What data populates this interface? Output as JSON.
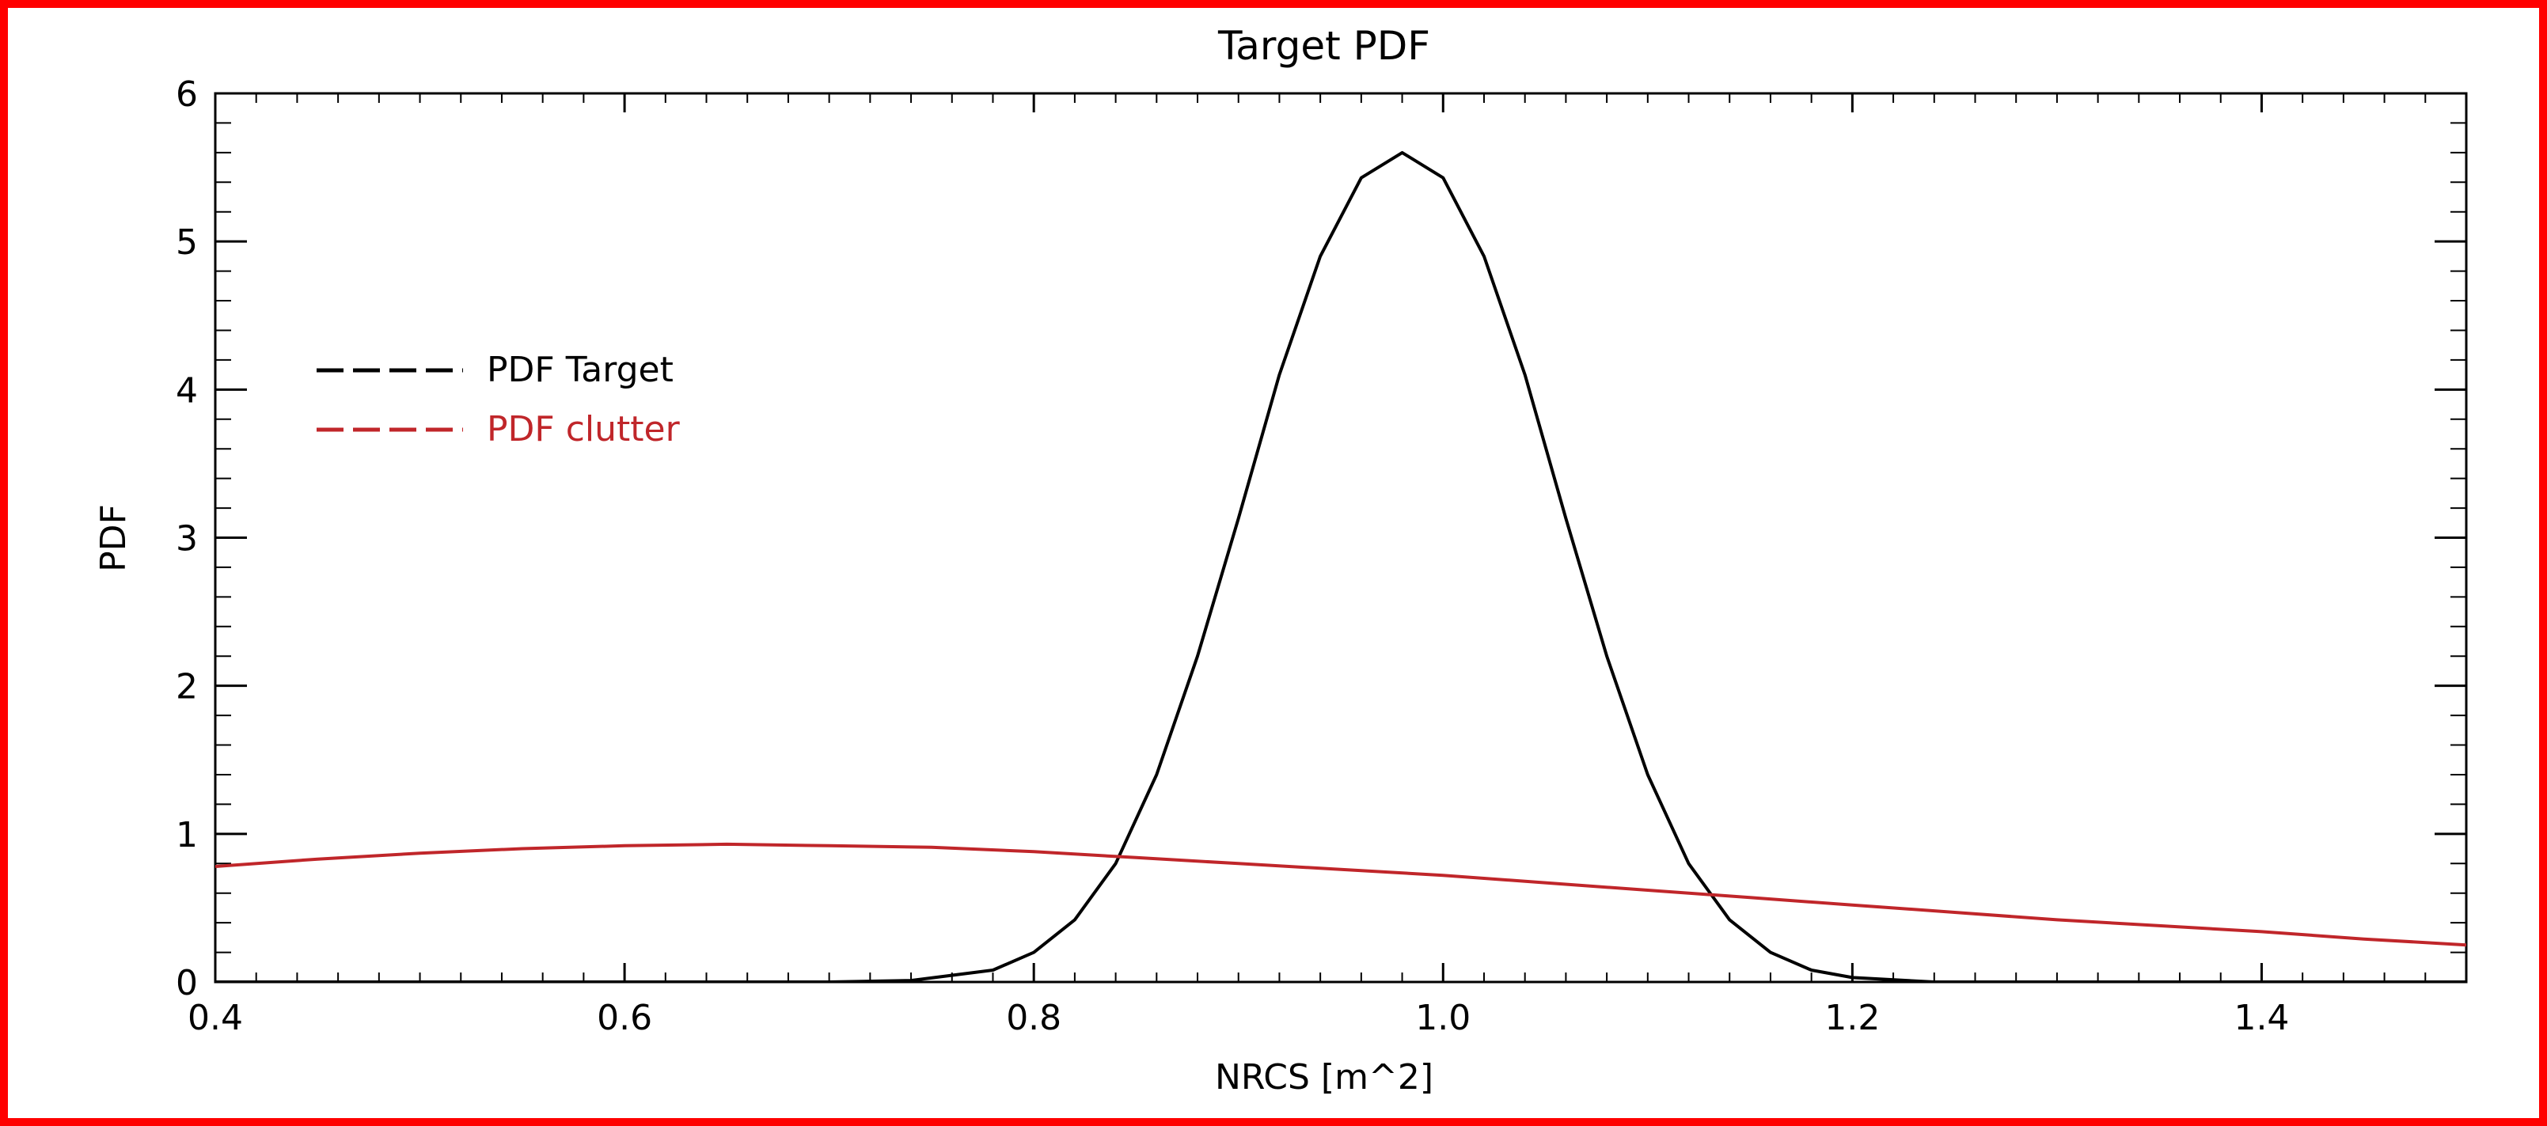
{
  "chart_data": {
    "type": "line",
    "title": "Target PDF",
    "xlabel": "NRCS [m^2]",
    "ylabel": "PDF",
    "xlim": [
      0.4,
      1.5
    ],
    "ylim": [
      0,
      6
    ],
    "x_ticks": [
      "0.4",
      "0.6",
      "0.8",
      "1.0",
      "1.2",
      "1.4"
    ],
    "y_ticks": [
      "0",
      "1",
      "2",
      "3",
      "4",
      "5",
      "6"
    ],
    "grid": false,
    "legend_position": "upper-left",
    "series": [
      {
        "name": "PDF Target",
        "color": "#000000",
        "x": [
          0.4,
          0.6,
          0.7,
          0.74,
          0.78,
          0.8,
          0.82,
          0.84,
          0.86,
          0.88,
          0.9,
          0.92,
          0.94,
          0.96,
          0.98,
          1.0,
          1.02,
          1.04,
          1.06,
          1.08,
          1.1,
          1.12,
          1.14,
          1.16,
          1.18,
          1.2,
          1.24,
          1.3,
          1.5
        ],
        "y": [
          0.0,
          0.0,
          0.0,
          0.01,
          0.08,
          0.2,
          0.42,
          0.8,
          1.4,
          2.2,
          3.13,
          4.1,
          4.9,
          5.43,
          5.6,
          5.43,
          4.9,
          4.1,
          3.13,
          2.2,
          1.4,
          0.8,
          0.42,
          0.2,
          0.08,
          0.03,
          0.0,
          0.0,
          0.0
        ]
      },
      {
        "name": "PDF clutter",
        "color": "#c0262a",
        "x": [
          0.4,
          0.45,
          0.5,
          0.55,
          0.6,
          0.65,
          0.7,
          0.75,
          0.8,
          0.85,
          0.9,
          0.95,
          1.0,
          1.05,
          1.1,
          1.15,
          1.2,
          1.25,
          1.3,
          1.35,
          1.4,
          1.45,
          1.5
        ],
        "y": [
          0.78,
          0.83,
          0.87,
          0.9,
          0.92,
          0.93,
          0.92,
          0.91,
          0.88,
          0.84,
          0.8,
          0.76,
          0.72,
          0.67,
          0.62,
          0.57,
          0.52,
          0.47,
          0.42,
          0.38,
          0.34,
          0.29,
          0.25
        ]
      }
    ]
  }
}
